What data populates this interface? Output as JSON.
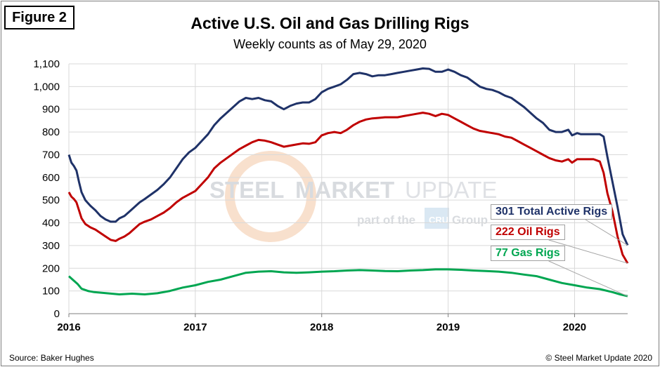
{
  "figure_label": "Figure 2",
  "source": "Source: Baker Hughes",
  "copyright": "© Steel Market Update 2020",
  "watermark": {
    "name": "STEEL MARKET UPDATE",
    "word1": "STEEL",
    "word2": "MARKET",
    "word3": "UPDATE",
    "tagline_prefix": "part of the",
    "badge": "CRU",
    "tagline_suffix": "Group"
  },
  "colors": {
    "total": "#1f3268",
    "oil": "#c00000",
    "gas": "#00a651",
    "grid": "#d9d9d9"
  },
  "chart_data": {
    "type": "line",
    "title": "Active U.S. Oil and Gas Drilling Rigs",
    "subtitle": "Weekly counts as of May 29, 2020",
    "xlabel": "",
    "ylabel": "",
    "xlim": [
      2016.0,
      2020.42
    ],
    "ylim": [
      0,
      1100
    ],
    "yticks": [
      0,
      100,
      200,
      300,
      400,
      500,
      600,
      700,
      800,
      900,
      1000,
      1100
    ],
    "ytick_labels": [
      "0",
      "100",
      "200",
      "300",
      "400",
      "500",
      "600",
      "700",
      "800",
      "900",
      "1,000",
      "1,100"
    ],
    "xticks": [
      2016,
      2017,
      2018,
      2019,
      2020
    ],
    "xtick_labels": [
      "2016",
      "2017",
      "2018",
      "2019",
      "2020"
    ],
    "grid": true,
    "annotations": [
      {
        "series": "total",
        "text": "301 Total Active Rigs"
      },
      {
        "series": "oil",
        "text": "222 Oil Rigs"
      },
      {
        "series": "gas",
        "text": "77 Gas Rigs"
      }
    ],
    "series": [
      {
        "key": "total",
        "name": "Total Active Rigs",
        "x": [
          2016.0,
          2016.02,
          2016.04,
          2016.06,
          2016.08,
          2016.1,
          2016.13,
          2016.17,
          2016.21,
          2016.25,
          2016.29,
          2016.33,
          2016.37,
          2016.4,
          2016.44,
          2016.48,
          2016.52,
          2016.56,
          2016.6,
          2016.65,
          2016.7,
          2016.75,
          2016.8,
          2016.85,
          2016.9,
          2016.95,
          2017.0,
          2017.05,
          2017.1,
          2017.15,
          2017.2,
          2017.25,
          2017.3,
          2017.35,
          2017.4,
          2017.45,
          2017.5,
          2017.55,
          2017.6,
          2017.65,
          2017.7,
          2017.75,
          2017.8,
          2017.85,
          2017.9,
          2017.95,
          2018.0,
          2018.05,
          2018.1,
          2018.15,
          2018.2,
          2018.25,
          2018.3,
          2018.35,
          2018.4,
          2018.45,
          2018.5,
          2018.55,
          2018.6,
          2018.65,
          2018.7,
          2018.75,
          2018.8,
          2018.85,
          2018.9,
          2018.95,
          2019.0,
          2019.05,
          2019.1,
          2019.15,
          2019.2,
          2019.25,
          2019.3,
          2019.35,
          2019.4,
          2019.45,
          2019.5,
          2019.55,
          2019.6,
          2019.65,
          2019.7,
          2019.75,
          2019.8,
          2019.85,
          2019.9,
          2019.95,
          2019.98,
          2020.02,
          2020.05,
          2020.1,
          2020.15,
          2020.2,
          2020.23,
          2020.26,
          2020.3,
          2020.34,
          2020.38,
          2020.42
        ],
        "values": [
          700,
          665,
          650,
          630,
          580,
          535,
          500,
          475,
          455,
          430,
          415,
          405,
          405,
          420,
          430,
          450,
          470,
          490,
          505,
          525,
          545,
          570,
          600,
          640,
          680,
          710,
          730,
          760,
          790,
          830,
          860,
          885,
          910,
          935,
          950,
          945,
          950,
          940,
          935,
          915,
          900,
          915,
          925,
          930,
          930,
          945,
          975,
          990,
          1000,
          1010,
          1030,
          1055,
          1060,
          1055,
          1045,
          1050,
          1050,
          1055,
          1060,
          1065,
          1070,
          1075,
          1080,
          1078,
          1065,
          1065,
          1075,
          1065,
          1050,
          1040,
          1020,
          1000,
          990,
          985,
          975,
          960,
          950,
          930,
          910,
          885,
          860,
          840,
          810,
          800,
          800,
          810,
          785,
          795,
          790,
          790,
          790,
          790,
          780,
          690,
          580,
          470,
          350,
          301
        ]
      },
      {
        "key": "oil",
        "name": "Oil Rigs",
        "x": [
          2016.0,
          2016.02,
          2016.04,
          2016.06,
          2016.08,
          2016.1,
          2016.13,
          2016.17,
          2016.21,
          2016.25,
          2016.29,
          2016.33,
          2016.37,
          2016.4,
          2016.44,
          2016.48,
          2016.52,
          2016.56,
          2016.6,
          2016.65,
          2016.7,
          2016.75,
          2016.8,
          2016.85,
          2016.9,
          2016.95,
          2017.0,
          2017.05,
          2017.1,
          2017.15,
          2017.2,
          2017.25,
          2017.3,
          2017.35,
          2017.4,
          2017.45,
          2017.5,
          2017.55,
          2017.6,
          2017.65,
          2017.7,
          2017.75,
          2017.8,
          2017.85,
          2017.9,
          2017.95,
          2018.0,
          2018.05,
          2018.1,
          2018.15,
          2018.2,
          2018.25,
          2018.3,
          2018.35,
          2018.4,
          2018.45,
          2018.5,
          2018.55,
          2018.6,
          2018.65,
          2018.7,
          2018.75,
          2018.8,
          2018.85,
          2018.9,
          2018.95,
          2019.0,
          2019.05,
          2019.1,
          2019.15,
          2019.2,
          2019.25,
          2019.3,
          2019.35,
          2019.4,
          2019.45,
          2019.5,
          2019.55,
          2019.6,
          2019.65,
          2019.7,
          2019.75,
          2019.8,
          2019.85,
          2019.9,
          2019.95,
          2019.98,
          2020.02,
          2020.05,
          2020.1,
          2020.15,
          2020.2,
          2020.23,
          2020.26,
          2020.3,
          2020.34,
          2020.38,
          2020.42
        ],
        "values": [
          535,
          515,
          505,
          490,
          455,
          420,
          395,
          380,
          370,
          355,
          340,
          325,
          320,
          330,
          340,
          355,
          375,
          395,
          405,
          415,
          430,
          445,
          465,
          490,
          510,
          525,
          540,
          570,
          600,
          640,
          665,
          685,
          705,
          725,
          740,
          755,
          765,
          762,
          755,
          745,
          735,
          740,
          745,
          750,
          748,
          755,
          785,
          795,
          800,
          795,
          810,
          830,
          845,
          855,
          860,
          862,
          865,
          865,
          865,
          870,
          875,
          880,
          885,
          880,
          870,
          880,
          875,
          860,
          845,
          830,
          815,
          805,
          800,
          795,
          790,
          780,
          775,
          760,
          745,
          730,
          715,
          700,
          685,
          675,
          670,
          680,
          665,
          680,
          680,
          680,
          680,
          670,
          620,
          530,
          450,
          340,
          260,
          222
        ]
      },
      {
        "key": "gas",
        "name": "Gas Rigs",
        "x": [
          2016.0,
          2016.03,
          2016.07,
          2016.1,
          2016.15,
          2016.2,
          2016.3,
          2016.4,
          2016.5,
          2016.6,
          2016.7,
          2016.8,
          2016.9,
          2017.0,
          2017.1,
          2017.2,
          2017.3,
          2017.4,
          2017.5,
          2017.6,
          2017.7,
          2017.8,
          2017.9,
          2018.0,
          2018.1,
          2018.2,
          2018.3,
          2018.4,
          2018.5,
          2018.6,
          2018.7,
          2018.8,
          2018.9,
          2019.0,
          2019.1,
          2019.2,
          2019.3,
          2019.4,
          2019.5,
          2019.6,
          2019.7,
          2019.8,
          2019.9,
          2020.0,
          2020.1,
          2020.2,
          2020.3,
          2020.36,
          2020.42
        ],
        "values": [
          165,
          150,
          130,
          110,
          100,
          95,
          90,
          85,
          88,
          85,
          90,
          100,
          115,
          125,
          140,
          150,
          165,
          180,
          185,
          187,
          182,
          180,
          182,
          185,
          187,
          190,
          192,
          190,
          188,
          187,
          190,
          192,
          195,
          195,
          193,
          190,
          188,
          185,
          180,
          172,
          165,
          150,
          135,
          125,
          115,
          108,
          95,
          85,
          77
        ]
      }
    ]
  }
}
